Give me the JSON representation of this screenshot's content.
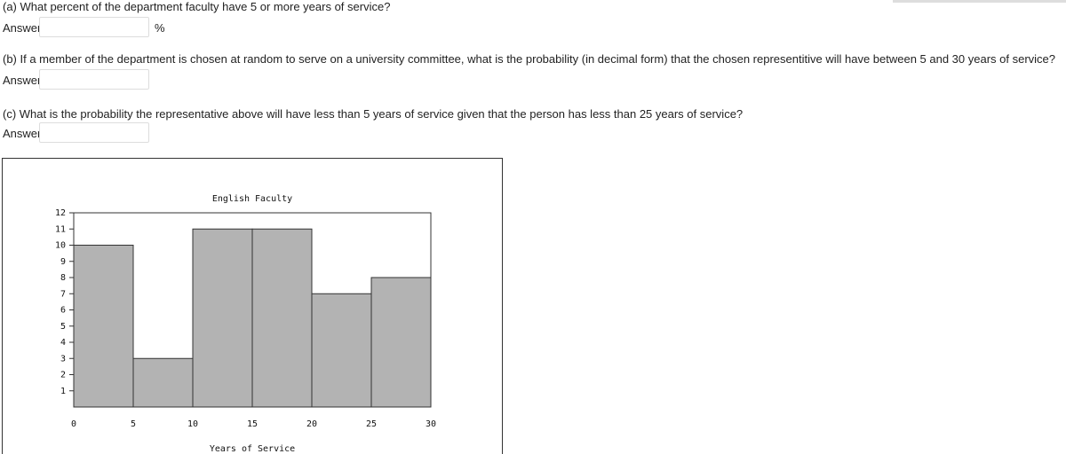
{
  "questions": [
    {
      "text": "(a) What percent of the department faculty have 5 or more years of service?",
      "answer_label": "Answer:",
      "unit": "%"
    },
    {
      "text": "(b) If a member of the department is chosen at random to serve on a university committee, what is the probability (in decimal form) that the chosen representitive will have between 5 and 30 years of service?",
      "answer_label": "Answer:"
    },
    {
      "text": "(c) What is the probability the representative above will have less than 5 years of service given that the person has less than 25 years of service?",
      "answer_label": "Answer:"
    }
  ],
  "chart_data": {
    "type": "histogram",
    "title": "English Faculty",
    "x_label": "Years of Service",
    "bins": [
      0,
      5,
      10,
      15,
      20,
      25,
      30
    ],
    "values": [
      10,
      3,
      11,
      11,
      7,
      8
    ],
    "color": "#b3b3b3",
    "xlim": [
      0,
      30
    ],
    "xticks": [
      0,
      5,
      10,
      15,
      20,
      25,
      30
    ],
    "ylim": [
      0,
      12
    ],
    "yticks": [
      1,
      2,
      3,
      4,
      5,
      6,
      7,
      8,
      9,
      10,
      11,
      12
    ]
  }
}
